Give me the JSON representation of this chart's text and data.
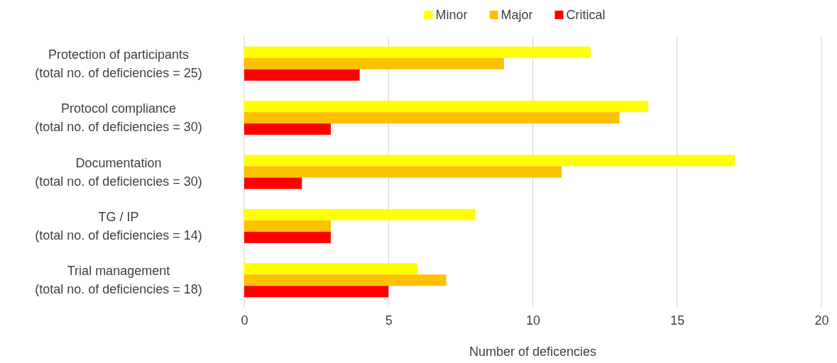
{
  "chart_data": {
    "type": "bar",
    "orientation": "horizontal",
    "xlabel": "Number of deficencies",
    "categories": [
      "Protection of participants\n(total no. of deficiencies = 25)",
      "Protocol compliance\n(total no. of deficiencies = 30)",
      "Documentation\n(total no. of deficiencies = 30)",
      "TG / IP\n(total no. of deficiencies = 14)",
      "Trial management\n(total no. of deficiencies = 18)"
    ],
    "series": [
      {
        "name": "Minor",
        "color": "#ffff00",
        "values": [
          12,
          14,
          17,
          8,
          6
        ]
      },
      {
        "name": "Major",
        "color": "#ffc000",
        "values": [
          9,
          13,
          11,
          3,
          7
        ]
      },
      {
        "name": "Critical",
        "color": "#ff0000",
        "values": [
          4,
          3,
          2,
          3,
          5
        ]
      }
    ],
    "xlim": [
      0,
      20
    ],
    "xticks": [
      0,
      5,
      10,
      15,
      20
    ],
    "grid": "x",
    "legend": "top"
  }
}
